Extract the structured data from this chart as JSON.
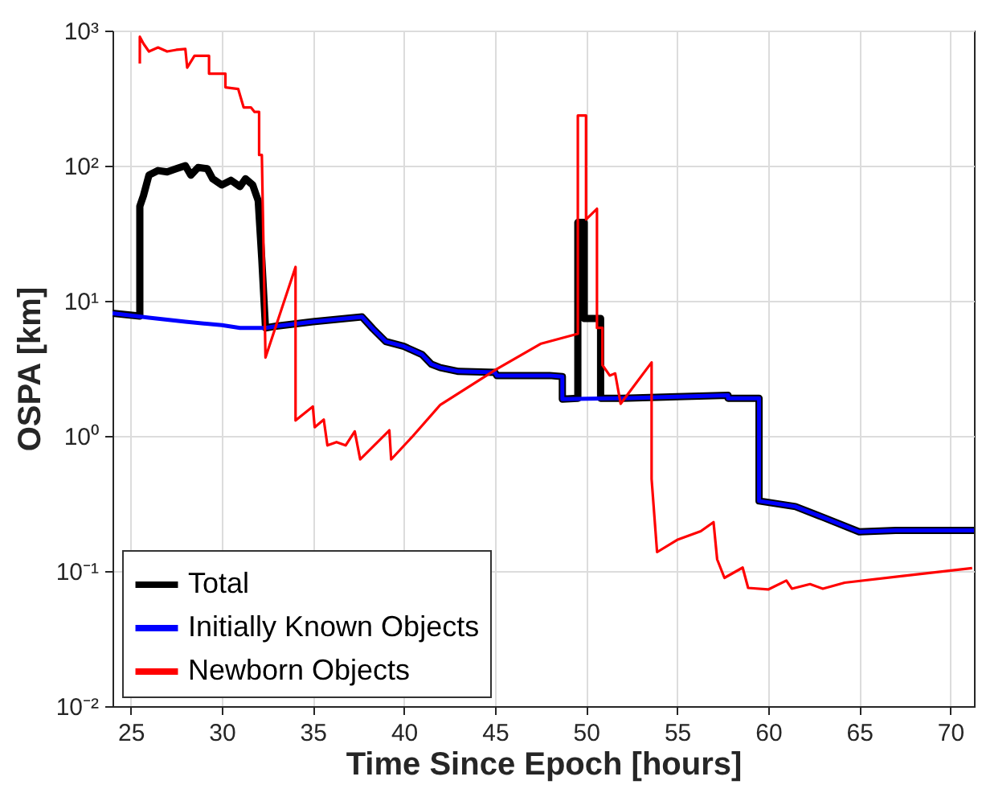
{
  "chart_data": {
    "type": "line",
    "xlabel": "Time Since Epoch [hours]",
    "ylabel": "OSPA [km]",
    "log": "y",
    "grid": true,
    "legend": "bottom left",
    "xlim": [
      24,
      71.3
    ],
    "xticks": [
      25,
      30,
      35,
      40,
      45,
      50,
      55,
      60,
      65,
      70
    ],
    "ylim": [
      0.01,
      1000
    ],
    "yticks": [
      {
        "value": 0.01,
        "label": "10⁻²"
      },
      {
        "value": 0.1,
        "label": "10⁻¹"
      },
      {
        "value": 1,
        "label": "10⁰"
      },
      {
        "value": 10,
        "label": "10¹"
      },
      {
        "value": 100,
        "label": "10²"
      },
      {
        "value": 1000,
        "label": "10³"
      }
    ],
    "series": [
      {
        "name": "Total",
        "color": "#000000",
        "x": [
          24,
          25.5,
          25.5,
          25.7,
          26,
          26.5,
          27,
          27.5,
          28,
          28.3,
          28.7,
          29.2,
          29.5,
          30,
          30.5,
          31,
          31.3,
          31.7,
          32,
          32.2,
          32.4,
          33,
          35,
          37.7,
          38.3,
          39,
          40,
          41,
          41.5,
          42,
          43,
          45,
          45.1,
          48,
          48.7,
          48.7,
          49.55,
          49.55,
          49.9,
          49.9,
          50.8,
          50.8,
          52,
          55,
          57.8,
          57.8,
          59.5,
          59.5,
          61.5,
          63,
          65,
          67,
          71.3
        ],
        "values": [
          8.1,
          7.7,
          50,
          60,
          85,
          92,
          90,
          95,
          100,
          85,
          97,
          95,
          80,
          72,
          78,
          70,
          80,
          72,
          55,
          20,
          6.3,
          6.5,
          7.0,
          7.6,
          6.2,
          5,
          4.6,
          4,
          3.4,
          3.2,
          3.0,
          2.95,
          2.8,
          2.8,
          2.75,
          1.87,
          1.9,
          38,
          38,
          7.4,
          7.4,
          1.9,
          1.9,
          1.95,
          2.0,
          1.9,
          1.9,
          0.33,
          0.3,
          0.25,
          0.195,
          0.2,
          0.2
        ]
      },
      {
        "name": "Initially Known Objects",
        "color": "#0000ff",
        "x": [
          24,
          26,
          28,
          30,
          31,
          32.4,
          33,
          35,
          37.7,
          38.3,
          39,
          40,
          41,
          41.5,
          42,
          43,
          45,
          45.1,
          48,
          48.7,
          48.7,
          52,
          55,
          57.8,
          57.8,
          59.5,
          59.5,
          61.5,
          63,
          65,
          67,
          71.3
        ],
        "values": [
          8.1,
          7.5,
          7.0,
          6.6,
          6.3,
          6.3,
          6.5,
          7.0,
          7.6,
          6.2,
          5,
          4.6,
          4,
          3.4,
          3.2,
          3.0,
          2.95,
          2.8,
          2.8,
          2.75,
          1.87,
          1.9,
          1.95,
          2.0,
          1.9,
          1.9,
          0.33,
          0.3,
          0.25,
          0.195,
          0.2,
          0.2
        ]
      },
      {
        "name": "Newborn Objects",
        "color": "#ff0000",
        "x": [
          25.5,
          25.5,
          25.7,
          26,
          26.5,
          27,
          27.5,
          28,
          28.1,
          28.5,
          29.3,
          29.3,
          30.2,
          30.2,
          30.9,
          31.2,
          31.6,
          31.8,
          32.05,
          32.05,
          32.2,
          32.4,
          34.05,
          34.05,
          35.0,
          35.1,
          35.6,
          35.8,
          36.3,
          36.8,
          37.3,
          37.6,
          39.2,
          39.3,
          40.5,
          42.0,
          45.06,
          47.5,
          49.55,
          49.55,
          50.0,
          50.0,
          50.6,
          50.6,
          50.9,
          50.9,
          51.0,
          51.3,
          51.6,
          51.9,
          53.6,
          53.6,
          53.9,
          55,
          56.3,
          57.0,
          57.2,
          57.6,
          58.6,
          58.9,
          60,
          61,
          61.3,
          62.3,
          63,
          64.2,
          67.4,
          71.2
        ],
        "values": [
          570,
          900,
          800,
          700,
          750,
          700,
          720,
          730,
          532,
          650,
          650,
          480,
          480,
          380,
          370,
          270,
          270,
          250,
          250,
          120,
          120,
          3.8,
          17.8,
          1.3,
          1.65,
          1.16,
          1.32,
          0.85,
          0.9,
          0.85,
          1.08,
          0.67,
          1.1,
          0.67,
          1.0,
          1.7,
          3.1,
          4.8,
          5.7,
          235,
          235,
          40,
          48,
          6.3,
          6.3,
          3.35,
          3.2,
          2.8,
          2.9,
          1.73,
          3.5,
          0.48,
          0.138,
          0.17,
          0.197,
          0.23,
          0.122,
          0.089,
          0.106,
          0.075,
          0.073,
          0.085,
          0.074,
          0.08,
          0.074,
          0.082,
          0.092,
          0.105
        ]
      }
    ]
  }
}
